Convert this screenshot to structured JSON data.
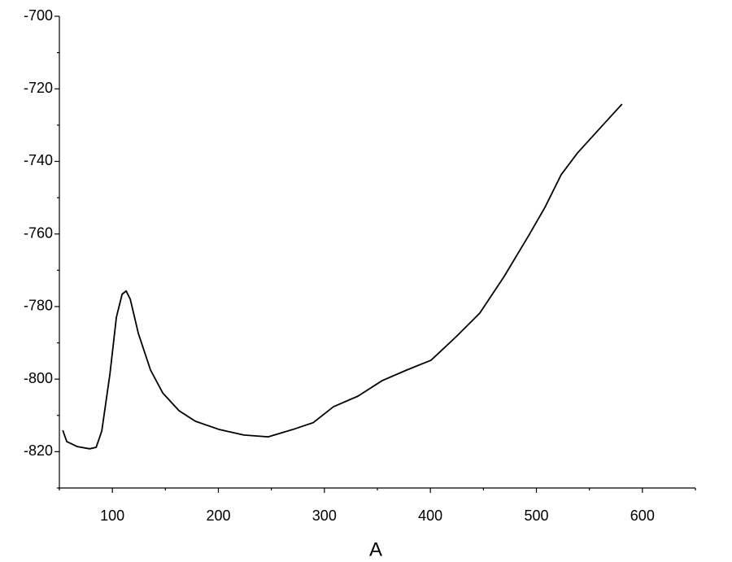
{
  "chart_data": {
    "type": "line",
    "x_label": "A",
    "x": [
      53.2,
      57,
      67,
      78.5,
      84.7,
      90,
      97.7,
      103.8,
      109.2,
      113,
      116.9,
      124.5,
      136,
      147.5,
      162.9,
      178.2,
      201,
      224,
      247,
      270,
      289.4,
      308.6,
      331.6,
      354.6,
      377.6,
      400.6,
      423.6,
      446.6,
      469.6,
      492.6,
      508,
      523.3,
      538.7,
      561.7,
      580.8
    ],
    "series": [
      {
        "color": "#000000",
        "values": [
          -814.1,
          -817.2,
          -818.6,
          -819.2,
          -818.8,
          -814.3,
          -798.6,
          -782.9,
          -776.6,
          -775.7,
          -778,
          -787.4,
          -797.5,
          -803.8,
          -808.7,
          -811.6,
          -813.9,
          -815.4,
          -815.9,
          -813.9,
          -812,
          -807.6,
          -804.7,
          -800.4,
          -797.5,
          -794.8,
          -788.5,
          -781.8,
          -771.7,
          -760.5,
          -752.7,
          -743.7,
          -737.7,
          -730.3,
          -724.2
        ]
      }
    ],
    "xlim": [
      50,
      650
    ],
    "xticks": [
      100,
      200,
      300,
      400,
      500,
      600
    ],
    "ylim": [
      -830,
      -700
    ],
    "yticks": [
      -820,
      -800,
      -780,
      -760,
      -740,
      -720,
      -700
    ]
  }
}
